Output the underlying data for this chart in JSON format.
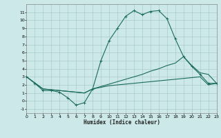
{
  "title": "",
  "xlabel": "Humidex (Indice chaleur)",
  "background_color": "#cce8e8",
  "grid_color": "#aacccc",
  "line_color": "#1a6b5a",
  "xlim": [
    0,
    23
  ],
  "ylim": [
    -1.5,
    12
  ],
  "xticks": [
    0,
    1,
    2,
    3,
    4,
    5,
    6,
    7,
    8,
    9,
    10,
    11,
    12,
    13,
    14,
    15,
    16,
    17,
    18,
    19,
    20,
    21,
    22,
    23
  ],
  "yticks": [
    -1,
    0,
    1,
    2,
    3,
    4,
    5,
    6,
    7,
    8,
    9,
    10,
    11
  ],
  "line1_x": [
    0,
    1,
    2,
    3,
    4,
    5,
    6,
    7,
    8,
    9,
    10,
    11,
    12,
    13,
    14,
    15,
    16,
    17,
    18,
    19,
    20,
    21,
    22,
    23
  ],
  "line1_y": [
    3.0,
    2.2,
    1.3,
    1.3,
    1.1,
    0.4,
    -0.5,
    -0.2,
    1.5,
    5.0,
    7.5,
    9.0,
    10.5,
    11.2,
    10.7,
    11.1,
    11.2,
    10.2,
    7.7,
    5.5,
    4.3,
    3.3,
    2.2,
    2.2
  ],
  "line2_x": [
    0,
    2,
    3,
    4,
    5,
    6,
    7,
    8,
    9,
    10,
    11,
    12,
    13,
    14,
    15,
    16,
    17,
    18,
    19,
    20,
    21,
    22,
    23
  ],
  "line2_y": [
    3.0,
    1.5,
    1.4,
    1.3,
    1.2,
    1.1,
    1.0,
    1.5,
    1.8,
    2.1,
    2.4,
    2.7,
    3.0,
    3.3,
    3.7,
    4.0,
    4.4,
    4.7,
    5.5,
    4.4,
    3.5,
    3.3,
    2.2
  ],
  "line3_x": [
    0,
    2,
    3,
    4,
    5,
    6,
    7,
    8,
    9,
    10,
    11,
    12,
    13,
    14,
    15,
    16,
    17,
    18,
    19,
    20,
    21,
    22,
    23
  ],
  "line3_y": [
    3.0,
    1.5,
    1.4,
    1.3,
    1.2,
    1.1,
    1.0,
    1.5,
    1.7,
    1.9,
    2.0,
    2.1,
    2.2,
    2.3,
    2.4,
    2.5,
    2.6,
    2.7,
    2.8,
    2.9,
    3.0,
    2.0,
    2.2
  ],
  "figsize": [
    3.2,
    2.0
  ],
  "dpi": 100
}
